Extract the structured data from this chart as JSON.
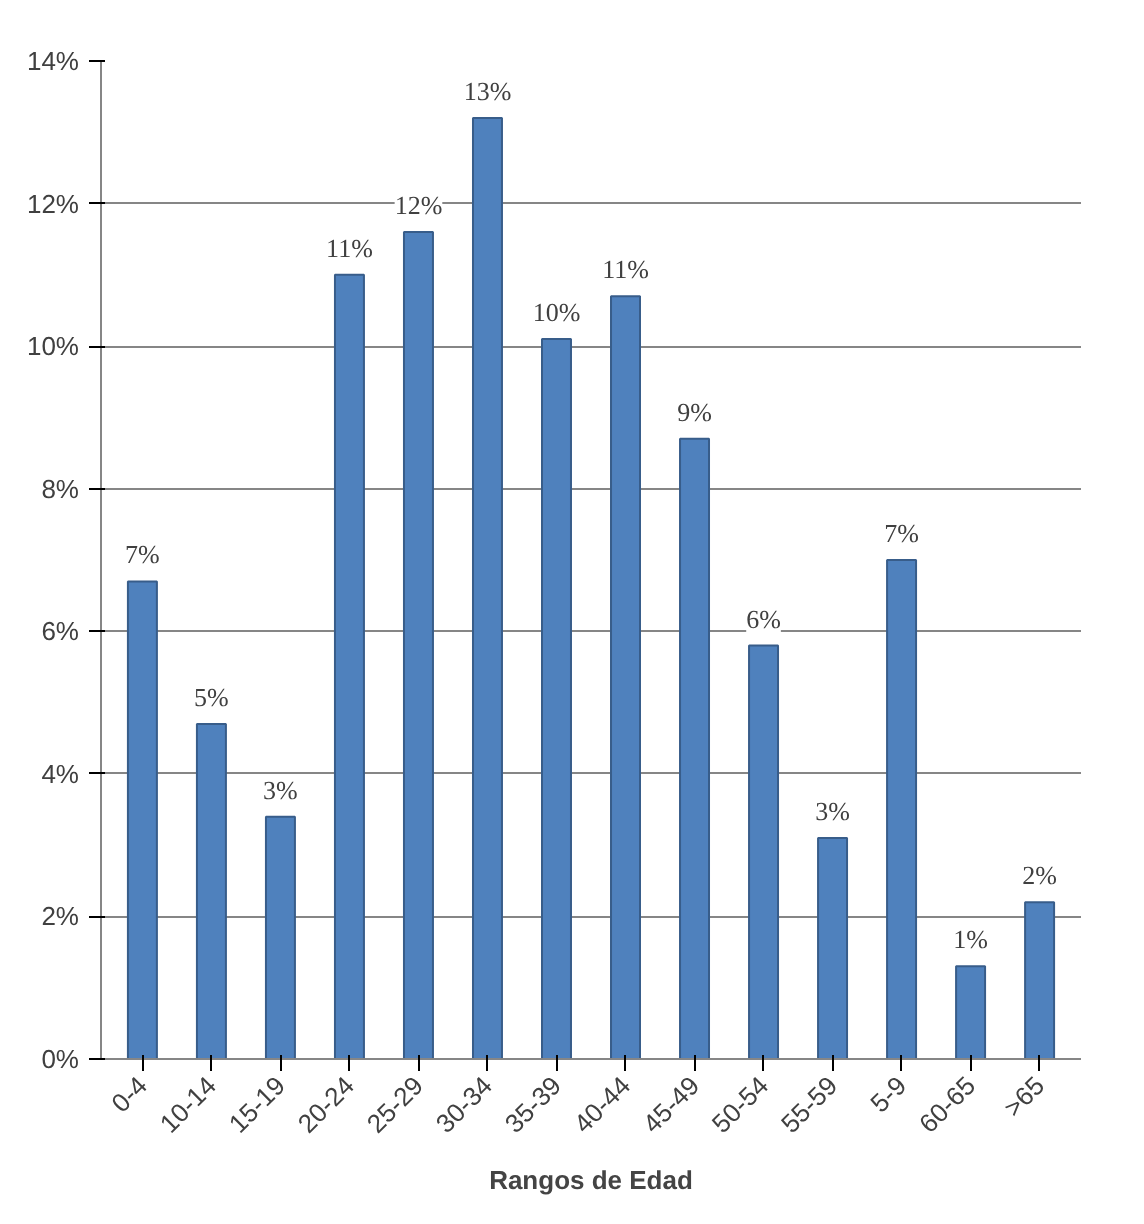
{
  "chart_data": {
    "type": "bar",
    "xlabel": "Rangos de Edad",
    "categories": [
      "0-4",
      "10-14",
      "15-19",
      "20-24",
      "25-29",
      "30-34",
      "35-39",
      "40-44",
      "45-49",
      "50-54",
      "55-59",
      "5-9",
      "60-65",
      ">65"
    ],
    "values": [
      6.7,
      4.7,
      3.4,
      11.0,
      11.6,
      13.2,
      10.1,
      10.7,
      8.7,
      5.8,
      3.1,
      7.0,
      1.3,
      2.2
    ],
    "value_labels": [
      "7%",
      "5%",
      "3%",
      "11%",
      "12%",
      "13%",
      "10%",
      "11%",
      "9%",
      "6%",
      "3%",
      "7%",
      "1%",
      "2%"
    ],
    "color": "#4f81bd",
    "ylim": [
      0,
      14
    ],
    "yticks": [
      {
        "value": 0,
        "label": "0%"
      },
      {
        "value": 2,
        "label": "2%"
      },
      {
        "value": 4,
        "label": "4%"
      },
      {
        "value": 6,
        "label": "6%"
      },
      {
        "value": 8,
        "label": "8%"
      },
      {
        "value": 10,
        "label": "10%"
      },
      {
        "value": 12,
        "label": "12%"
      },
      {
        "value": 14,
        "label": "14%"
      }
    ],
    "grid": "y"
  }
}
